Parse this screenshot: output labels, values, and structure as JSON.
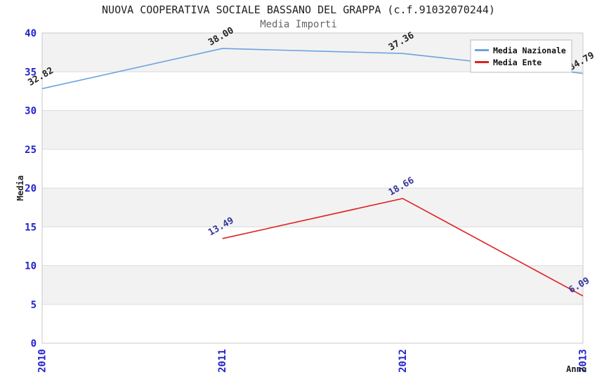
{
  "header": {
    "title": "NUOVA COOPERATIVA SOCIALE BASSANO DEL GRAPPA (c.f.91032070244)",
    "subtitle": "Media Importi"
  },
  "chart_data": {
    "type": "line",
    "title": "NUOVA COOPERATIVA SOCIALE BASSANO DEL GRAPPA (c.f.91032070244)",
    "subtitle": "Media Importi",
    "xlabel": "Anno",
    "ylabel": "Media",
    "categories": [
      "2010",
      "2011",
      "2012",
      "2013"
    ],
    "ylim": [
      0,
      40
    ],
    "ytick_step": 5,
    "grid": "horizontal-gridlines-with-alternating-bands",
    "legend_position": "top-right",
    "series": [
      {
        "name": "Media Nazionale",
        "color": "#6CA2E0",
        "label_color": "#222222",
        "values": [
          32.82,
          38.0,
          37.36,
          34.79
        ]
      },
      {
        "name": "Media Ente",
        "color": "#E02222",
        "label_color": "#333399",
        "values": [
          null,
          13.49,
          18.66,
          6.09
        ]
      }
    ],
    "colors": {
      "band": "#F2F2F2",
      "grid": "#DCDCDC",
      "border": "#C9C9C9",
      "tick_label": "#2222CC",
      "title": "#222222",
      "subtitle": "#666666",
      "background": "#FFFFFF"
    }
  }
}
